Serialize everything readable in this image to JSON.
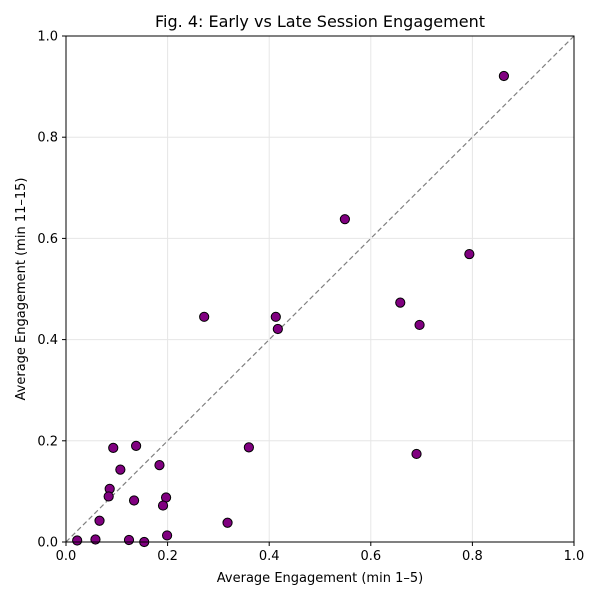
{
  "chart_data": {
    "type": "scatter",
    "title": "Fig. 4: Early vs Late Session Engagement",
    "xlabel": "Average Engagement (min 1–5)",
    "ylabel": "Average Engagement (min 11–15)",
    "xlim": [
      0.0,
      1.0
    ],
    "ylim": [
      0.0,
      1.0
    ],
    "xticks": [
      "0.0",
      "0.2",
      "0.4",
      "0.6",
      "0.8",
      "1.0"
    ],
    "yticks": [
      "0.0",
      "0.2",
      "0.4",
      "0.6",
      "0.8",
      "1.0"
    ],
    "grid": true,
    "reference_line": "y = x (dashed)",
    "marker_color": "#800080",
    "marker_edge_color": "#000000",
    "reference_line_color": "#808080",
    "points": [
      {
        "x": 0.862,
        "y": 0.921
      },
      {
        "x": 0.549,
        "y": 0.638
      },
      {
        "x": 0.794,
        "y": 0.569
      },
      {
        "x": 0.658,
        "y": 0.473
      },
      {
        "x": 0.696,
        "y": 0.429
      },
      {
        "x": 0.272,
        "y": 0.445
      },
      {
        "x": 0.413,
        "y": 0.445
      },
      {
        "x": 0.417,
        "y": 0.421
      },
      {
        "x": 0.36,
        "y": 0.187
      },
      {
        "x": 0.69,
        "y": 0.174
      },
      {
        "x": 0.093,
        "y": 0.186
      },
      {
        "x": 0.138,
        "y": 0.19
      },
      {
        "x": 0.184,
        "y": 0.152
      },
      {
        "x": 0.107,
        "y": 0.143
      },
      {
        "x": 0.086,
        "y": 0.105
      },
      {
        "x": 0.084,
        "y": 0.09
      },
      {
        "x": 0.134,
        "y": 0.082
      },
      {
        "x": 0.197,
        "y": 0.088
      },
      {
        "x": 0.191,
        "y": 0.072
      },
      {
        "x": 0.066,
        "y": 0.042
      },
      {
        "x": 0.318,
        "y": 0.038
      },
      {
        "x": 0.199,
        "y": 0.013
      },
      {
        "x": 0.022,
        "y": 0.003
      },
      {
        "x": 0.058,
        "y": 0.005
      },
      {
        "x": 0.124,
        "y": 0.004
      },
      {
        "x": 0.154,
        "y": 0.0
      }
    ]
  }
}
